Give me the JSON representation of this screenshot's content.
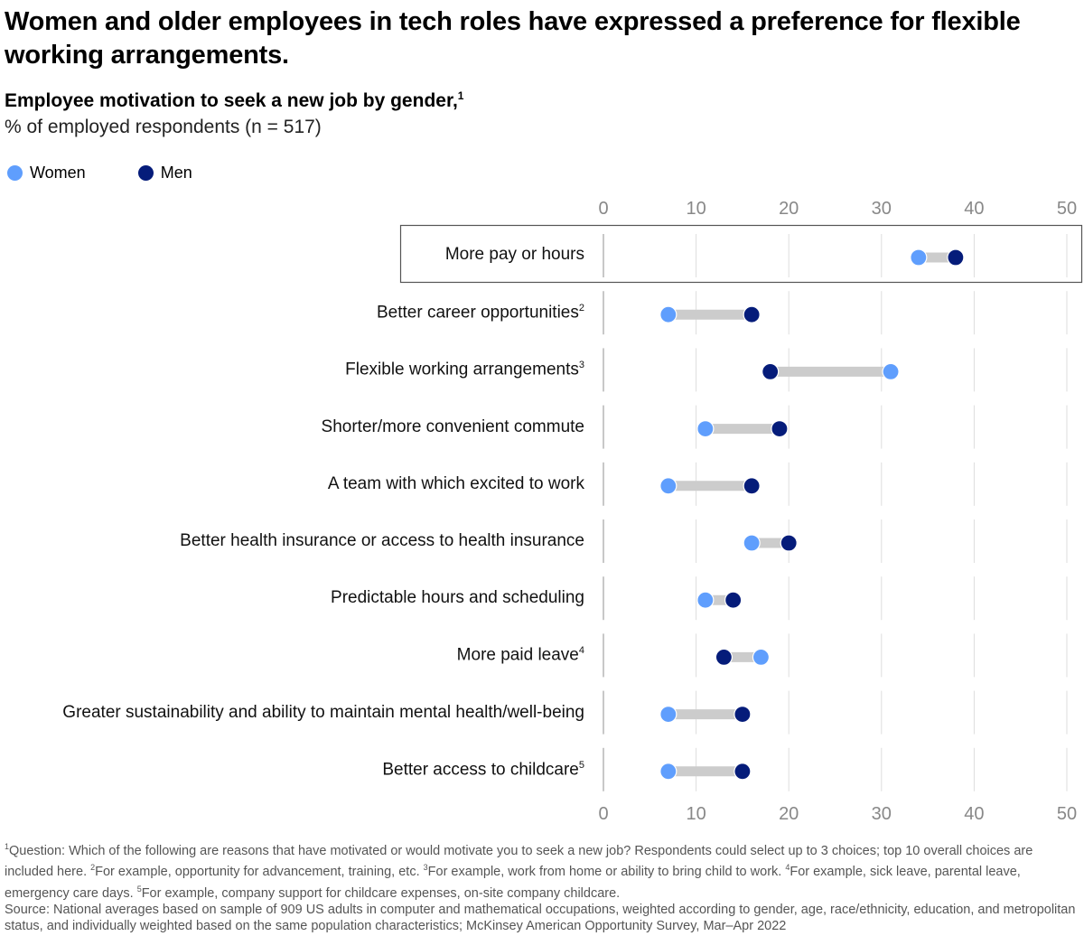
{
  "title": "Women and older employees in tech roles have expressed a preference for flexible working arrangements.",
  "subtitle": "Employee motivation to seek a new job by gender,",
  "subtitle_sup": "1",
  "unit": "% of employed respondents (n = 517)",
  "legend": [
    {
      "label": "Women",
      "color": "#5f9efd"
    },
    {
      "label": "Men",
      "color": "#051c7a"
    }
  ],
  "colors": {
    "women": "#5f9efd",
    "men": "#051c7a",
    "connector": "#cccccc",
    "grid": "#dddddd",
    "highlight_border": "#555555"
  },
  "chart_data": {
    "type": "dumbbell",
    "title": "Employee motivation to seek a new job by gender",
    "xlabel": "% of employed respondents",
    "xlim": [
      0,
      50
    ],
    "xticks": [
      "0",
      "10",
      "20",
      "30",
      "40",
      "50"
    ],
    "grid": true,
    "highlighted_category": "More pay or hours",
    "categories": [
      {
        "label": "More pay or hours",
        "sup": ""
      },
      {
        "label": "Better career opportunities",
        "sup": "2"
      },
      {
        "label": "Flexible working arrangements",
        "sup": "3"
      },
      {
        "label": "Shorter/more convenient commute",
        "sup": ""
      },
      {
        "label": "A team with which excited to work",
        "sup": ""
      },
      {
        "label": "Better health insurance or access to health insurance",
        "sup": ""
      },
      {
        "label": "Predictable hours and scheduling",
        "sup": ""
      },
      {
        "label": "More paid leave",
        "sup": "4"
      },
      {
        "label": "Greater sustainability and ability to maintain mental health/well-being",
        "sup": ""
      },
      {
        "label": "Better access to childcare",
        "sup": "5"
      }
    ],
    "series": [
      {
        "name": "Women",
        "values": [
          34,
          7,
          31,
          11,
          7,
          16,
          11,
          17,
          7,
          7
        ]
      },
      {
        "name": "Men",
        "values": [
          38,
          16,
          18,
          19,
          16,
          20,
          14,
          13,
          15,
          15
        ]
      }
    ]
  },
  "footnotes": [
    {
      "sup": "1",
      "text": "Question: Which of the following are reasons that have motivated or would motivate you to seek a new job? Respondents could select up to 3 choices; top 10 overall choices are included here. "
    },
    {
      "sup": "2",
      "text": "For example, opportunity for advancement, training, etc. "
    },
    {
      "sup": "3",
      "text": "For example, work from home or ability to bring child to work. "
    },
    {
      "sup": "4",
      "text": "For example, sick leave, parental leave, emergency care days. "
    },
    {
      "sup": "5",
      "text": "For example, company support for childcare expenses, on-site company childcare."
    }
  ],
  "source": "Source: National averages based on sample of 909 US adults in computer and mathematical occupations, weighted according to gender, age, race/ethnicity, education, and metropolitan status, and individually weighted based on the same population characteristics; McKinsey American Opportunity Survey, Mar–Apr 2022"
}
